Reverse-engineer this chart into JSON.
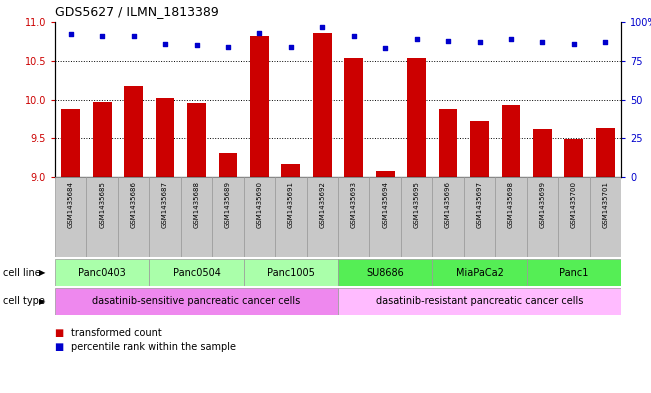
{
  "title": "GDS5627 / ILMN_1813389",
  "samples": [
    "GSM1435684",
    "GSM1435685",
    "GSM1435686",
    "GSM1435687",
    "GSM1435688",
    "GSM1435689",
    "GSM1435690",
    "GSM1435691",
    "GSM1435692",
    "GSM1435693",
    "GSM1435694",
    "GSM1435695",
    "GSM1435696",
    "GSM1435697",
    "GSM1435698",
    "GSM1435699",
    "GSM1435700",
    "GSM1435701"
  ],
  "transformed_count": [
    9.88,
    9.97,
    10.18,
    10.02,
    9.95,
    9.31,
    10.82,
    9.17,
    10.86,
    10.53,
    9.08,
    10.53,
    9.88,
    9.72,
    9.93,
    9.62,
    9.49,
    9.63
  ],
  "percentile_rank": [
    92,
    91,
    91,
    86,
    85,
    84,
    93,
    84,
    97,
    91,
    83,
    89,
    88,
    87,
    89,
    87,
    86,
    87
  ],
  "cell_lines": [
    {
      "name": "Panc0403",
      "start": 0,
      "end": 3,
      "color": "#aaffaa"
    },
    {
      "name": "Panc0504",
      "start": 3,
      "end": 6,
      "color": "#aaffaa"
    },
    {
      "name": "Panc1005",
      "start": 6,
      "end": 9,
      "color": "#aaffaa"
    },
    {
      "name": "SU8686",
      "start": 9,
      "end": 12,
      "color": "#55ee55"
    },
    {
      "name": "MiaPaCa2",
      "start": 12,
      "end": 15,
      "color": "#55ee55"
    },
    {
      "name": "Panc1",
      "start": 15,
      "end": 18,
      "color": "#55ee55"
    }
  ],
  "cell_types": [
    {
      "name": "dasatinib-sensitive pancreatic cancer cells",
      "start": 0,
      "end": 9,
      "color": "#ee88ee"
    },
    {
      "name": "dasatinib-resistant pancreatic cancer cells",
      "start": 9,
      "end": 18,
      "color": "#ffbbff"
    }
  ],
  "ylim_left": [
    9.0,
    11.0
  ],
  "ylim_right": [
    0,
    100
  ],
  "yticks_left": [
    9.0,
    9.5,
    10.0,
    10.5,
    11.0
  ],
  "yticks_right": [
    0,
    25,
    50,
    75,
    100
  ],
  "bar_color": "#cc0000",
  "dot_color": "#0000cc",
  "bg_color": "#ffffff",
  "legend_items": [
    {
      "label": "transformed count",
      "color": "#cc0000"
    },
    {
      "label": "percentile rank within the sample",
      "color": "#0000cc"
    }
  ]
}
